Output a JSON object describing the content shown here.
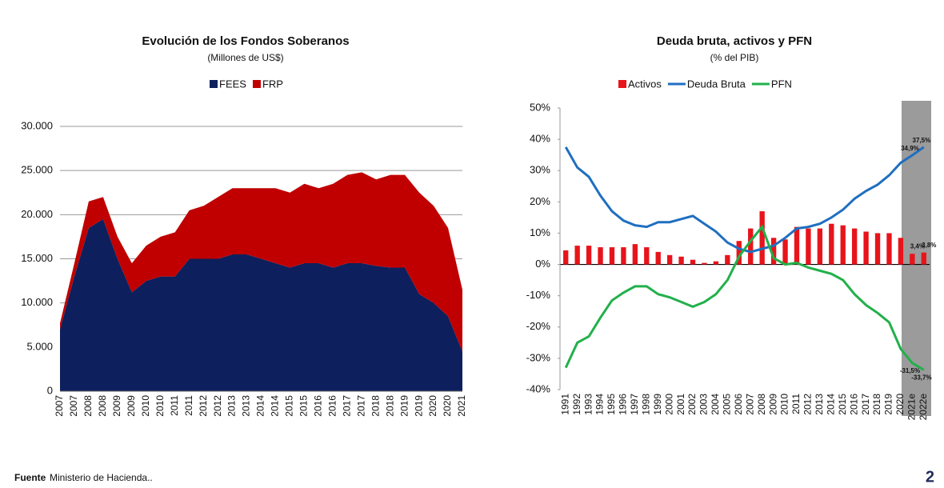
{
  "chart_data": [
    {
      "type": "area",
      "stacked": true,
      "title": "Evolución de los Fondos Soberanos",
      "subtitle": "(Millones de US$)",
      "categories": [
        "2007",
        "2007",
        "2008",
        "2008",
        "2009",
        "2009",
        "2010",
        "2010",
        "2011",
        "2011",
        "2012",
        "2012",
        "2013",
        "2013",
        "2014",
        "2014",
        "2015",
        "2015",
        "2016",
        "2016",
        "2017",
        "2017",
        "2018",
        "2018",
        "2019",
        "2019",
        "2020",
        "2020",
        "2021"
      ],
      "series": [
        {
          "name": "FEES",
          "color": "#0d1f5c",
          "values": [
            7000,
            13000,
            18500,
            19500,
            15000,
            11200,
            12500,
            13000,
            13000,
            15000,
            15000,
            15000,
            15500,
            15500,
            15000,
            14500,
            14000,
            14500,
            14500,
            14000,
            14500,
            14500,
            14200,
            14000,
            14000,
            11000,
            10000,
            8500,
            4500
          ]
        },
        {
          "name": "FRP",
          "color": "#c00000",
          "values": [
            700,
            1500,
            3000,
            2500,
            2500,
            3300,
            4000,
            4500,
            5000,
            5500,
            6000,
            7000,
            7500,
            7500,
            8000,
            8500,
            8500,
            9000,
            8500,
            9500,
            10000,
            10300,
            9800,
            10500,
            10500,
            11500,
            11000,
            10000,
            7000
          ]
        }
      ],
      "ylim": [
        0,
        30000
      ],
      "yticks": [
        0,
        {
          "value": 5000,
          "label": "5.000"
        },
        {
          "value": 10000,
          "label": "10.000"
        },
        {
          "value": 15000,
          "label": "15.000"
        },
        {
          "value": 20000,
          "label": "20.000"
        },
        {
          "value": 25000,
          "label": "25.000"
        },
        {
          "value": 30000,
          "label": "30.000"
        }
      ],
      "grid": true,
      "legend": "top"
    },
    {
      "type": "combo",
      "title": "Deuda bruta, activos y PFN",
      "subtitle": "(% del PIB)",
      "categories": [
        "1991",
        "1992",
        "1993",
        "1994",
        "1995",
        "1996",
        "1997",
        "1998",
        "1999",
        "2000",
        "2001",
        "2002",
        "2003",
        "2004",
        "2005",
        "2006",
        "2007",
        "2008",
        "2009",
        "2010",
        "2011",
        "2012",
        "2013",
        "2014",
        "2015",
        "2016",
        "2017",
        "2018",
        "2019",
        "2020",
        "2021e",
        "2022e"
      ],
      "series": [
        {
          "name": "Activos",
          "type": "bar",
          "color": "#e8141b",
          "values": [
            4.5,
            6,
            6,
            5.5,
            5.5,
            5.5,
            6.5,
            5.5,
            4,
            3,
            2.5,
            1.5,
            0.5,
            1,
            3,
            7.5,
            11.5,
            17,
            8.5,
            8,
            12,
            11.5,
            11.5,
            13,
            12.5,
            11.5,
            10.5,
            10,
            10,
            8.5,
            3.4,
            3.8
          ],
          "value_labels": [
            null,
            null,
            null,
            null,
            null,
            null,
            null,
            null,
            null,
            null,
            null,
            null,
            null,
            null,
            null,
            null,
            null,
            null,
            null,
            null,
            null,
            null,
            null,
            null,
            null,
            null,
            null,
            null,
            null,
            null,
            "3,4%",
            "3,8%"
          ]
        },
        {
          "name": "Deuda Bruta",
          "type": "line",
          "color": "#1f6fc0",
          "values": [
            37.5,
            31,
            28,
            22,
            17,
            14,
            12.5,
            12,
            13.5,
            13.5,
            14.5,
            15.5,
            13,
            10.5,
            7,
            5,
            4,
            5,
            6,
            8.5,
            11.5,
            12,
            13,
            15,
            17.5,
            21,
            23.5,
            25.5,
            28.5,
            32.5,
            34.9,
            37.5
          ],
          "value_labels": [
            null,
            null,
            null,
            null,
            null,
            null,
            null,
            null,
            null,
            null,
            null,
            null,
            null,
            null,
            null,
            null,
            null,
            null,
            null,
            null,
            null,
            null,
            null,
            null,
            null,
            null,
            null,
            null,
            null,
            null,
            "34,9%",
            "37,5%"
          ]
        },
        {
          "name": "PFN",
          "type": "line",
          "color": "#22b04b",
          "values": [
            -33,
            -25,
            -23,
            -17,
            -11.5,
            -9,
            -7,
            -7,
            -9.5,
            -10.5,
            -12,
            -13.5,
            -12,
            -9.5,
            -5,
            2.5,
            7.5,
            12,
            2,
            0,
            0.5,
            -1,
            -2,
            -3,
            -5,
            -9.5,
            -13,
            -15.5,
            -18.5,
            -27,
            -31.5,
            -33.7
          ],
          "value_labels": [
            null,
            null,
            null,
            null,
            null,
            null,
            null,
            null,
            null,
            null,
            null,
            null,
            null,
            null,
            null,
            null,
            null,
            null,
            null,
            null,
            null,
            null,
            null,
            null,
            null,
            null,
            null,
            null,
            null,
            null,
            "-31,5%",
            "-33,7%"
          ]
        }
      ],
      "ylim": [
        -40,
        50
      ],
      "yticks": [
        {
          "value": -40,
          "label": "-40%"
        },
        {
          "value": -30,
          "label": "-30%"
        },
        {
          "value": -20,
          "label": "-20%"
        },
        {
          "value": -10,
          "label": "-10%"
        },
        {
          "value": 0,
          "label": "0%"
        },
        {
          "value": 10,
          "label": "10%"
        },
        {
          "value": 20,
          "label": "20%"
        },
        {
          "value": 30,
          "label": "30%"
        },
        {
          "value": 40,
          "label": "40%"
        },
        {
          "value": 50,
          "label": "50%"
        }
      ],
      "grid": false,
      "legend": "top"
    }
  ],
  "footer": {
    "source_label": "Fuente",
    "source": "Ministerio de Hacienda..",
    "page_number": 2
  }
}
